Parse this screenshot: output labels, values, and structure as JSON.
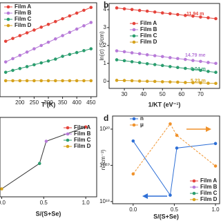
{
  "chart_data": [
    {
      "type": "line",
      "x_label": "T (K)",
      "x": [
        150,
        175,
        200,
        225,
        250,
        275,
        300,
        325,
        350,
        375,
        400,
        425,
        450
      ],
      "xlim": [
        130,
        470
      ],
      "xticks": [
        200,
        250,
        300,
        350,
        400,
        450
      ],
      "ylim": [
        0,
        10
      ],
      "series": [
        {
          "name": "Film A",
          "color": "#e5433b",
          "values": [
            5.9,
            6.2,
            6.5,
            6.8,
            7.1,
            7.4,
            7.7,
            8.0,
            8.3,
            8.6,
            8.9,
            9.2,
            9.5
          ]
        },
        {
          "name": "Film B",
          "color": "#b77ad8",
          "values": [
            3.7,
            4.05,
            4.4,
            4.75,
            5.1,
            5.45,
            5.8,
            6.15,
            6.5,
            6.85,
            7.2,
            7.55,
            7.9
          ]
        },
        {
          "name": "Film C",
          "color": "#2a9d6e",
          "values": [
            2.6,
            2.8,
            3.0,
            3.2,
            3.4,
            3.6,
            3.8,
            4.0,
            4.3,
            4.5,
            4.7,
            4.9,
            5.1
          ]
        },
        {
          "name": "Film D",
          "color": "#d6a21c",
          "values": [
            1.7,
            1.7,
            1.7,
            1.7,
            1.7,
            1.7,
            1.7,
            1.7,
            1.7,
            1.7,
            1.7,
            1.7,
            1.7
          ]
        }
      ]
    },
    {
      "type": "line",
      "panel": "b",
      "x_label": "1/KT (eV⁻¹)",
      "y_label": "ln(σ) (S/cm)",
      "x": [
        26,
        30,
        34,
        38,
        42,
        46,
        50,
        54,
        58,
        62,
        66,
        70,
        74,
        78
      ],
      "xlim": [
        22,
        80
      ],
      "xticks": [
        30,
        40,
        50,
        60,
        70
      ],
      "ylim": [
        -0.4,
        4.35
      ],
      "yticks": [
        0,
        1,
        2,
        3,
        4
      ],
      "series": [
        {
          "name": "Film A",
          "color": "#e5433b",
          "values": [
            4.1,
            4.05,
            4.01,
            3.96,
            3.92,
            3.87,
            3.82,
            3.78,
            3.73,
            3.68,
            3.64,
            3.59,
            3.55,
            3.5
          ]
        },
        {
          "name": "Film B",
          "color": "#b77ad8",
          "values": [
            1.7,
            1.65,
            1.59,
            1.54,
            1.48,
            1.43,
            1.38,
            1.32,
            1.27,
            1.22,
            1.16,
            1.11,
            1.05,
            1.0
          ]
        },
        {
          "name": "Film C",
          "color": "#2a9d6e",
          "values": [
            1.2,
            1.15,
            1.09,
            1.04,
            0.98,
            0.93,
            0.88,
            0.82,
            0.77,
            0.72,
            0.66,
            0.61,
            0.55,
            0.5
          ]
        },
        {
          "name": "Film D",
          "color": "#d6a21c",
          "values": [
            0.05,
            0.04,
            0.03,
            0.01,
            0.0,
            -0.01,
            -0.03,
            -0.04,
            -0.05,
            -0.07,
            -0.08,
            -0.09,
            -0.11,
            -0.12
          ]
        }
      ],
      "annotations": [
        "11.94 m",
        "14.79 me",
        "9.04 m",
        "5.23 m"
      ]
    },
    {
      "type": "line",
      "x_label": "S/(S+Se)",
      "x": [
        0.0,
        0.45,
        0.53,
        1.0
      ],
      "xlim": [
        -0.02,
        1.13
      ],
      "xticks": [
        0.0,
        0.5,
        1.0
      ],
      "ylim": [
        0,
        10
      ],
      "series": [
        {
          "color": "#333333",
          "values": [
            1.0,
            4.2,
            7.0,
            8.8
          ],
          "point_colors": [
            "#d6a21c",
            "#2a9d6e",
            "#b77ad8",
            "#e5433b"
          ]
        }
      ],
      "films": [
        {
          "name": "Film A",
          "color": "#e5433b"
        },
        {
          "name": "Film B",
          "color": "#b77ad8"
        },
        {
          "name": "Film C",
          "color": "#2a9d6e"
        },
        {
          "name": "Film D",
          "color": "#d6a21c"
        }
      ]
    },
    {
      "type": "line",
      "panel": "d",
      "x_label": "S/(S+Se)",
      "y_label": "n (cm⁻³)",
      "log_y": true,
      "x": [
        0.0,
        0.45,
        0.53,
        1.0
      ],
      "xlim": [
        -0.25,
        1.05
      ],
      "xticks": [
        0.0,
        0.5,
        1.0
      ],
      "ylim": [
        8.7e+17,
        2.3e+20
      ],
      "yticks": [
        {
          "value": 1e+18,
          "label": "10¹⁸"
        },
        {
          "value": 1e+19,
          "label": "10¹⁹"
        },
        {
          "value": 1e+20,
          "label": "10²⁰"
        }
      ],
      "y2lim": [
        0,
        10
      ],
      "series": [
        {
          "name": "n",
          "color": "#2e6fd6",
          "values": [
            4.7e+19,
            1.5e+18,
            3e+19,
            4e+19
          ]
        },
        {
          "name": "μ",
          "color": "#f0922b",
          "axis": "y2",
          "dashed": true,
          "values": [
            3.4,
            9.1,
            7.8,
            4.3
          ]
        }
      ],
      "films": [
        {
          "name": "Film A",
          "color": "#e5433b"
        },
        {
          "name": "Film B",
          "color": "#b77ad8"
        },
        {
          "name": "Film C",
          "color": "#2a9d6e"
        },
        {
          "name": "Film D",
          "color": "#d6a21c"
        }
      ]
    }
  ]
}
